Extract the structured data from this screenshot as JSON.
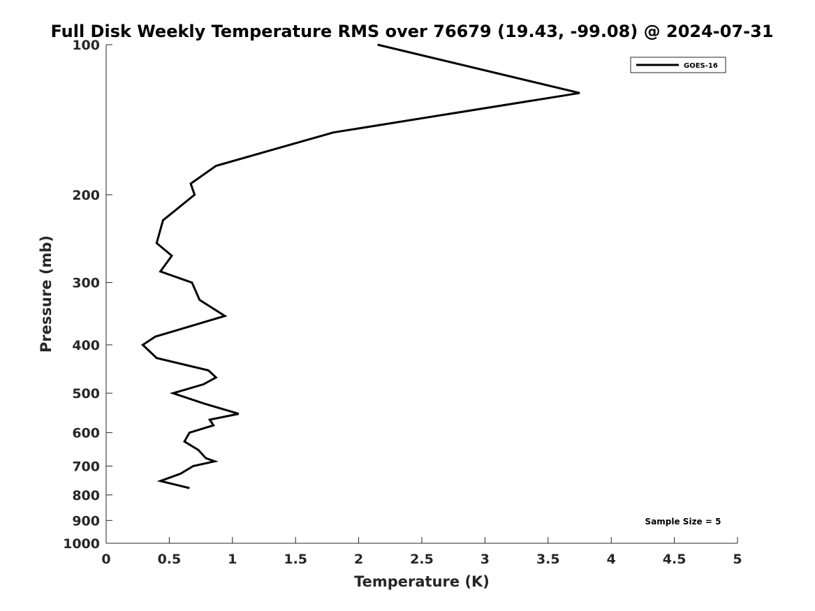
{
  "chart_data": {
    "type": "line",
    "title": "Full Disk Weekly Temperature RMS over 76679 (19.43, -99.08) @ 2024-07-31",
    "xlabel": "Temperature (K)",
    "ylabel": "Pressure (mb)",
    "xlim": [
      0,
      5
    ],
    "ylim": [
      100,
      1000
    ],
    "y_scale": "log",
    "y_reversed": true,
    "grid": false,
    "legend_position": "top-right",
    "x_ticks": [
      "0",
      "0.5",
      "1",
      "1.5",
      "2",
      "2.5",
      "3",
      "3.5",
      "4",
      "4.5",
      "5"
    ],
    "y_ticks": [
      "100",
      "200",
      "300",
      "400",
      "500",
      "600",
      "700",
      "800",
      "900",
      "1000"
    ],
    "series": [
      {
        "name": "GOES-16",
        "color": "#000000",
        "points": [
          [
            2.15,
            100
          ],
          [
            3.75,
            125
          ],
          [
            1.8,
            150
          ],
          [
            0.87,
            175
          ],
          [
            0.67,
            190
          ],
          [
            0.7,
            200
          ],
          [
            0.45,
            225
          ],
          [
            0.4,
            250
          ],
          [
            0.52,
            265
          ],
          [
            0.43,
            285
          ],
          [
            0.68,
            300
          ],
          [
            0.74,
            325
          ],
          [
            0.94,
            350
          ],
          [
            0.62,
            370
          ],
          [
            0.39,
            385
          ],
          [
            0.29,
            400
          ],
          [
            0.4,
            425
          ],
          [
            0.81,
            450
          ],
          [
            0.87,
            465
          ],
          [
            0.77,
            480
          ],
          [
            0.53,
            500
          ],
          [
            0.78,
            525
          ],
          [
            1.05,
            550
          ],
          [
            0.82,
            565
          ],
          [
            0.85,
            580
          ],
          [
            0.66,
            600
          ],
          [
            0.62,
            625
          ],
          [
            0.73,
            650
          ],
          [
            0.79,
            675
          ],
          [
            0.86,
            685
          ],
          [
            0.69,
            700
          ],
          [
            0.59,
            725
          ],
          [
            0.43,
            750
          ],
          [
            0.66,
            775
          ]
        ]
      }
    ],
    "annotations": [
      "Sample Size = 5"
    ]
  }
}
